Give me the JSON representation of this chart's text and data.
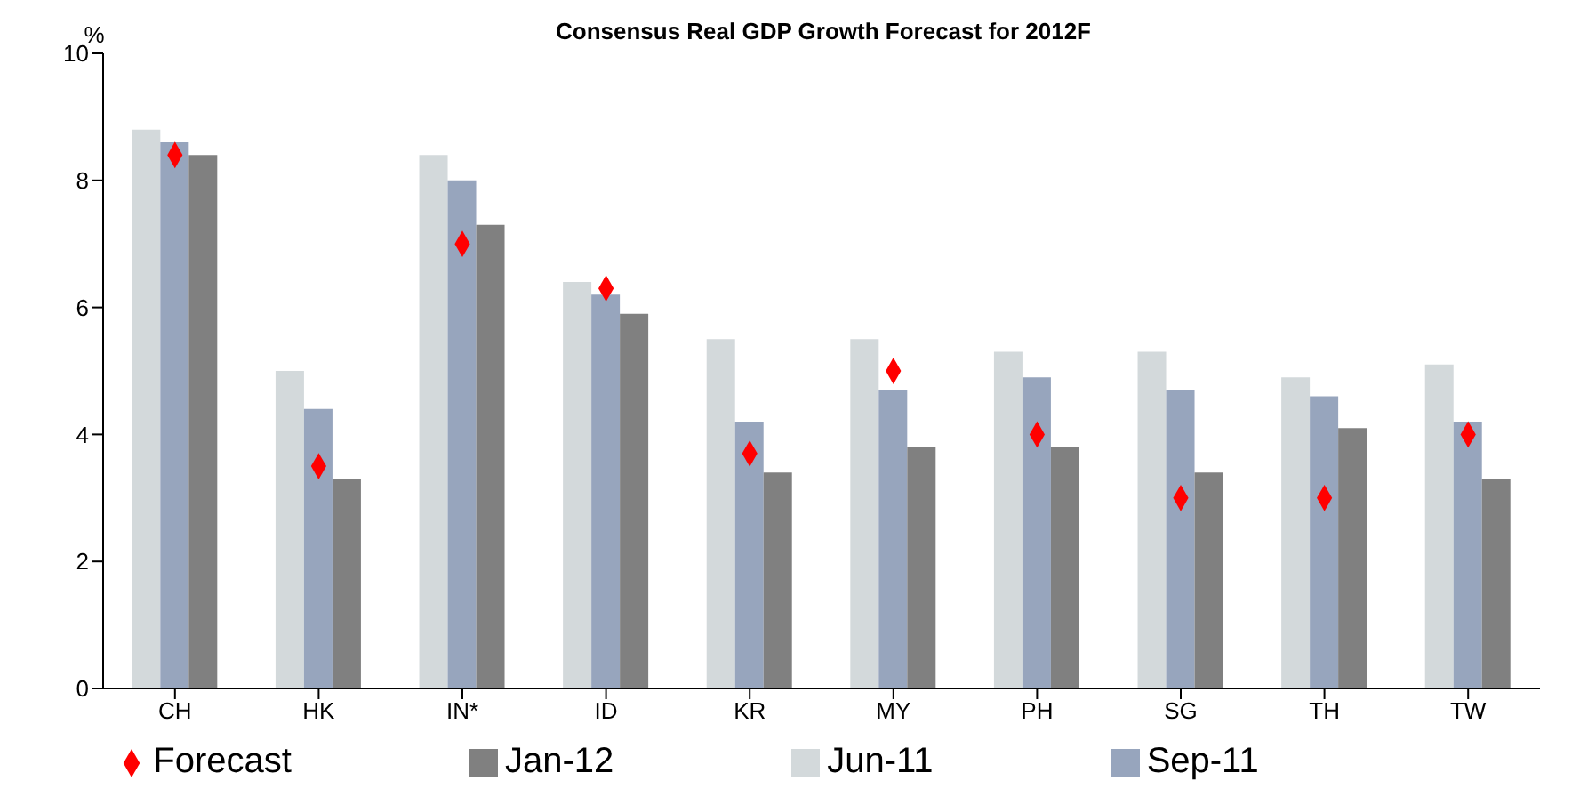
{
  "chart_data": {
    "type": "bar",
    "title": "Consensus Real GDP Growth Forecast for 2012F",
    "ylabel": "%",
    "categories": [
      "CH",
      "HK",
      "IN*",
      "ID",
      "KR",
      "MY",
      "PH",
      "SG",
      "TH",
      "TW"
    ],
    "series": [
      {
        "name": "Jun-11",
        "color": "#d3d9db",
        "values": [
          8.8,
          5.0,
          8.4,
          6.4,
          5.5,
          5.5,
          5.3,
          5.3,
          4.9,
          5.1
        ]
      },
      {
        "name": "Sep-11",
        "color": "#97a5bd",
        "values": [
          8.6,
          4.4,
          8.0,
          6.2,
          4.2,
          4.7,
          4.9,
          4.7,
          4.6,
          4.2
        ]
      },
      {
        "name": "Jan-12",
        "color": "#808080",
        "values": [
          8.4,
          3.3,
          7.3,
          5.9,
          3.4,
          3.8,
          3.8,
          3.4,
          4.1,
          3.3
        ]
      },
      {
        "name": "Forecast",
        "type": "scatter",
        "marker": "diamond",
        "color": "#ff0000",
        "values": [
          8.4,
          3.5,
          7.0,
          6.3,
          3.7,
          5.0,
          4.0,
          3.0,
          3.0,
          4.0
        ]
      }
    ],
    "ylim": [
      0,
      10
    ],
    "yticks": [
      0,
      2,
      4,
      6,
      8,
      10
    ],
    "grid": false,
    "legend": "bottom"
  }
}
